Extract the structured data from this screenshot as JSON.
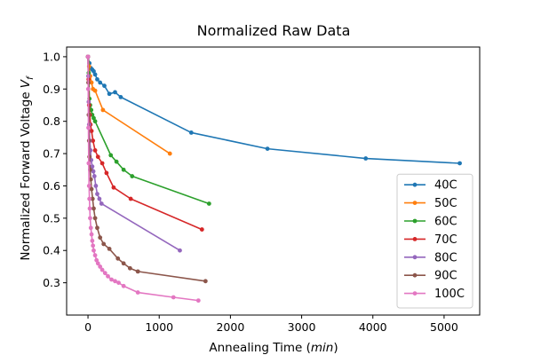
{
  "chart_data": {
    "type": "line",
    "title": "Normalized Raw Data",
    "xlabel": "Annealing Time (",
    "xlabel_italic": "min",
    "xlabel_close": ")",
    "ylabel": "Normalized Forward Voltage ",
    "ylabel_sym": "V",
    "ylabel_sub": "f",
    "xlim": [
      -300,
      5500
    ],
    "ylim": [
      0.2,
      1.03
    ],
    "xticks": [
      0,
      1000,
      2000,
      3000,
      4000,
      5000
    ],
    "xtick_labels": [
      "0",
      "1000",
      "2000",
      "3000",
      "4000",
      "5000"
    ],
    "yticks": [
      0.3,
      0.4,
      0.5,
      0.6,
      0.7,
      0.8,
      0.9,
      1.0
    ],
    "ytick_labels": [
      "0.3",
      "0.4",
      "0.5",
      "0.6",
      "0.7",
      "0.8",
      "0.9",
      "1.0"
    ],
    "grid": false,
    "legend_position": "lower-right",
    "series": [
      {
        "name": "40C",
        "color": "#1f77b4",
        "x": [
          0,
          20,
          40,
          60,
          80,
          100,
          130,
          170,
          230,
          300,
          380,
          460,
          1450,
          2520,
          3900,
          5220
        ],
        "y": [
          1.0,
          0.98,
          0.965,
          0.96,
          0.955,
          0.945,
          0.93,
          0.92,
          0.91,
          0.885,
          0.89,
          0.875,
          0.765,
          0.715,
          0.685,
          0.67
        ]
      },
      {
        "name": "50C",
        "color": "#ff7f0e",
        "x": [
          0,
          15,
          30,
          50,
          70,
          100,
          210,
          1150
        ],
        "y": [
          1.0,
          0.97,
          0.94,
          0.92,
          0.9,
          0.895,
          0.835,
          0.7
        ]
      },
      {
        "name": "60C",
        "color": "#2ca02c",
        "x": [
          0,
          10,
          20,
          30,
          45,
          60,
          80,
          100,
          320,
          400,
          500,
          620,
          1700
        ],
        "y": [
          1.0,
          0.95,
          0.87,
          0.85,
          0.835,
          0.82,
          0.81,
          0.8,
          0.695,
          0.675,
          0.65,
          0.63,
          0.545
        ]
      },
      {
        "name": "70C",
        "color": "#d62728",
        "x": [
          0,
          8,
          15,
          25,
          35,
          50,
          70,
          100,
          140,
          200,
          260,
          360,
          600,
          1600
        ],
        "y": [
          1.0,
          0.93,
          0.85,
          0.82,
          0.79,
          0.77,
          0.74,
          0.71,
          0.69,
          0.67,
          0.64,
          0.595,
          0.56,
          0.465
        ]
      },
      {
        "name": "80C",
        "color": "#9467bd",
        "x": [
          0,
          5,
          10,
          15,
          25,
          35,
          45,
          60,
          75,
          90,
          110,
          130,
          160,
          190,
          1290
        ],
        "y": [
          1.0,
          0.94,
          0.86,
          0.79,
          0.74,
          0.71,
          0.68,
          0.66,
          0.645,
          0.63,
          0.6,
          0.575,
          0.56,
          0.545,
          0.4
        ]
      },
      {
        "name": "90C",
        "color": "#8c564b",
        "x": [
          0,
          5,
          10,
          15,
          20,
          30,
          40,
          50,
          65,
          80,
          100,
          130,
          170,
          220,
          300,
          420,
          500,
          590,
          700,
          1650
        ],
        "y": [
          1.0,
          0.92,
          0.82,
          0.74,
          0.69,
          0.65,
          0.62,
          0.59,
          0.56,
          0.53,
          0.5,
          0.47,
          0.44,
          0.42,
          0.405,
          0.375,
          0.36,
          0.345,
          0.335,
          0.305
        ]
      },
      {
        "name": "100C",
        "color": "#e377c2",
        "x": [
          0,
          3,
          6,
          10,
          15,
          20,
          25,
          30,
          40,
          50,
          60,
          70,
          80,
          100,
          120,
          140,
          170,
          200,
          240,
          280,
          330,
          380,
          430,
          500,
          700,
          1200,
          1550
        ],
        "y": [
          1.0,
          0.9,
          0.78,
          0.67,
          0.6,
          0.56,
          0.53,
          0.5,
          0.47,
          0.45,
          0.43,
          0.415,
          0.4,
          0.385,
          0.37,
          0.36,
          0.35,
          0.34,
          0.33,
          0.32,
          0.31,
          0.305,
          0.3,
          0.29,
          0.27,
          0.255,
          0.245
        ]
      }
    ]
  }
}
